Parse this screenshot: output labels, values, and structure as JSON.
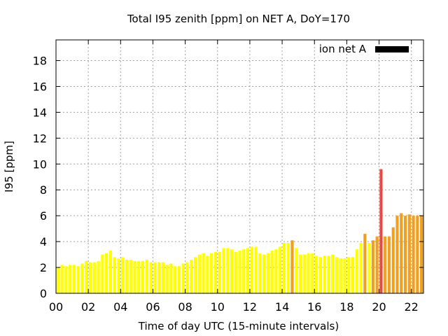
{
  "chart_data": {
    "type": "bar",
    "title": "Total I95 zenith [ppm] on NET A, DoY=170",
    "xlabel": "Time of day UTC (15-minute intervals)",
    "ylabel": "I95 [ppm]",
    "ylim": [
      0,
      19.6
    ],
    "xlim": [
      0,
      22.75
    ],
    "yticks": [
      0,
      2,
      4,
      6,
      8,
      10,
      12,
      14,
      16,
      18
    ],
    "xticks": [
      0,
      2,
      4,
      6,
      8,
      10,
      12,
      14,
      16,
      18,
      20,
      22
    ],
    "xtick_labels": [
      "00",
      "02",
      "04",
      "06",
      "08",
      "10",
      "12",
      "14",
      "16",
      "18",
      "20",
      "22"
    ],
    "grid": true,
    "legend": {
      "position": "top-right",
      "entries": [
        {
          "label": "ion net A",
          "color": "#000000"
        }
      ]
    },
    "bar_width_hours": 0.18,
    "color_thresholds": {
      "yellow_max": 3.9,
      "orange_max": 9.0
    },
    "colors": {
      "low": "#ffff00",
      "mid": "#f0a020",
      "high": "#e84840",
      "axis": "#000000",
      "grid": "#a0a0a0"
    },
    "x": [
      0.125,
      0.375,
      0.625,
      0.875,
      1.125,
      1.375,
      1.625,
      1.875,
      2.125,
      2.375,
      2.625,
      2.875,
      3.125,
      3.375,
      3.625,
      3.875,
      4.125,
      4.375,
      4.625,
      4.875,
      5.125,
      5.375,
      5.625,
      5.875,
      6.125,
      6.375,
      6.625,
      6.875,
      7.125,
      7.375,
      7.625,
      7.875,
      8.125,
      8.375,
      8.625,
      8.875,
      9.125,
      9.375,
      9.625,
      9.875,
      10.125,
      10.375,
      10.625,
      10.875,
      11.125,
      11.375,
      11.625,
      11.875,
      12.125,
      12.375,
      12.625,
      12.875,
      13.125,
      13.375,
      13.625,
      13.875,
      14.125,
      14.375,
      14.625,
      14.875,
      15.125,
      15.375,
      15.625,
      15.875,
      16.125,
      16.375,
      16.625,
      16.875,
      17.125,
      17.375,
      17.625,
      17.875,
      18.125,
      18.375,
      18.625,
      18.875,
      19.125,
      19.375,
      19.625,
      19.875,
      20.125,
      20.375,
      20.625,
      20.875,
      21.125,
      21.375,
      21.625,
      21.875,
      22.125,
      22.375,
      22.625
    ],
    "values": [
      2.0,
      2.2,
      2.1,
      2.2,
      2.2,
      2.1,
      2.3,
      2.5,
      2.4,
      2.4,
      2.5,
      3.0,
      3.1,
      3.3,
      2.8,
      2.7,
      2.8,
      2.6,
      2.6,
      2.5,
      2.5,
      2.5,
      2.6,
      2.4,
      2.4,
      2.4,
      2.4,
      2.2,
      2.3,
      2.1,
      2.1,
      2.3,
      2.4,
      2.6,
      2.8,
      3.0,
      3.1,
      2.9,
      3.1,
      3.2,
      3.2,
      3.5,
      3.5,
      3.4,
      3.2,
      3.3,
      3.4,
      3.5,
      3.6,
      3.6,
      3.1,
      3.0,
      3.1,
      3.3,
      3.4,
      3.6,
      3.9,
      3.9,
      4.1,
      3.5,
      3.0,
      3.0,
      3.1,
      3.1,
      2.9,
      2.8,
      2.9,
      2.9,
      3.0,
      2.8,
      2.7,
      2.7,
      2.8,
      2.8,
      3.4,
      3.9,
      4.6,
      3.9,
      4.1,
      4.4,
      9.6,
      4.4,
      4.4,
      5.1,
      6.0,
      6.2,
      6.0,
      6.1,
      6.0,
      6.0,
      6.0
    ]
  }
}
